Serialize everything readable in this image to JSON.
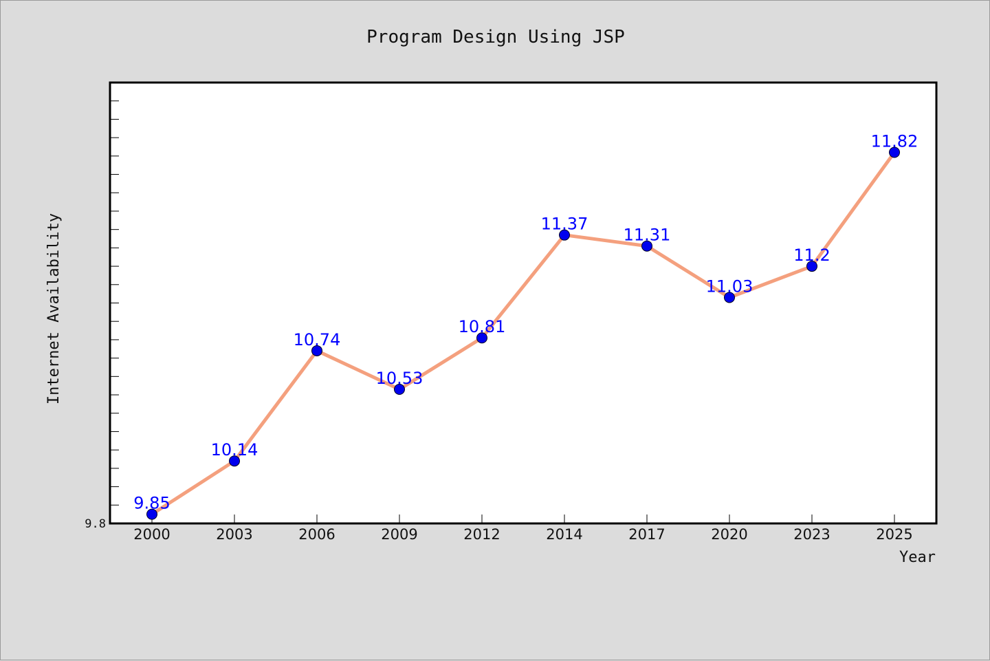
{
  "chart_data": {
    "type": "line",
    "title": "Program Design Using JSP",
    "xlabel": "Year",
    "ylabel": "Internet Availability",
    "categories": [
      "2000",
      "2003",
      "2006",
      "2009",
      "2012",
      "2014",
      "2017",
      "2020",
      "2023",
      "2025"
    ],
    "series": [
      {
        "values": [
          9.85,
          10.14,
          10.74,
          10.53,
          10.81,
          11.37,
          11.31,
          11.03,
          11.2,
          11.82
        ]
      }
    ],
    "data_labels": [
      "9.85",
      "10.14",
      "10.74",
      "10.53",
      "10.81",
      "11.37",
      "11.31",
      "11.03",
      "11.2",
      "11.82"
    ],
    "ylim": [
      9.8,
      12.2
    ],
    "yticks": [
      {
        "value": 9.8,
        "label": "9.8"
      }
    ],
    "grid": false,
    "legend": "none",
    "colors": {
      "line": "#f4a07e",
      "marker": "#0000ee",
      "label": "#0000ff",
      "plot_bg": "#ffffff",
      "page_bg": "#dcdcdc"
    }
  }
}
